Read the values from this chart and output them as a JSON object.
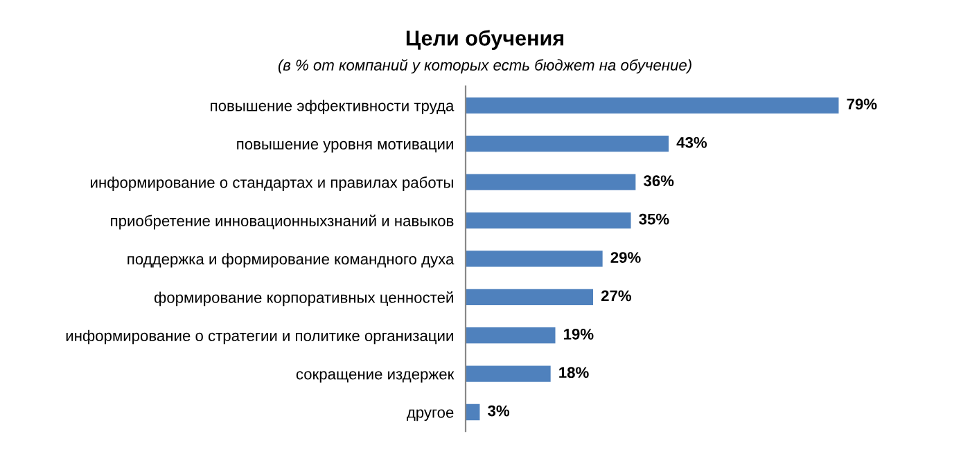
{
  "chart_data": {
    "type": "bar",
    "orientation": "horizontal",
    "title": "Цели обучения",
    "subtitle": "(в % от компаний у которых есть бюджет на обучение)",
    "categories": [
      "повышение эффективности труда",
      "повышение уровня мотивации",
      "информирование о стандартах и правилах работы",
      "приобретение инновационныхзнаний и навыков",
      "поддержка и формирование командного духа",
      "формирование корпоративных ценностей",
      "информирование о стратегии и политике организации",
      "сокращение издержек",
      "другое"
    ],
    "values": [
      79,
      43,
      36,
      35,
      29,
      27,
      19,
      18,
      3
    ],
    "value_labels": [
      "79%",
      "43%",
      "36%",
      "35%",
      "29%",
      "27%",
      "19%",
      "18%",
      "3%"
    ],
    "color": "#4f81bd",
    "grid": false,
    "legend": false
  }
}
